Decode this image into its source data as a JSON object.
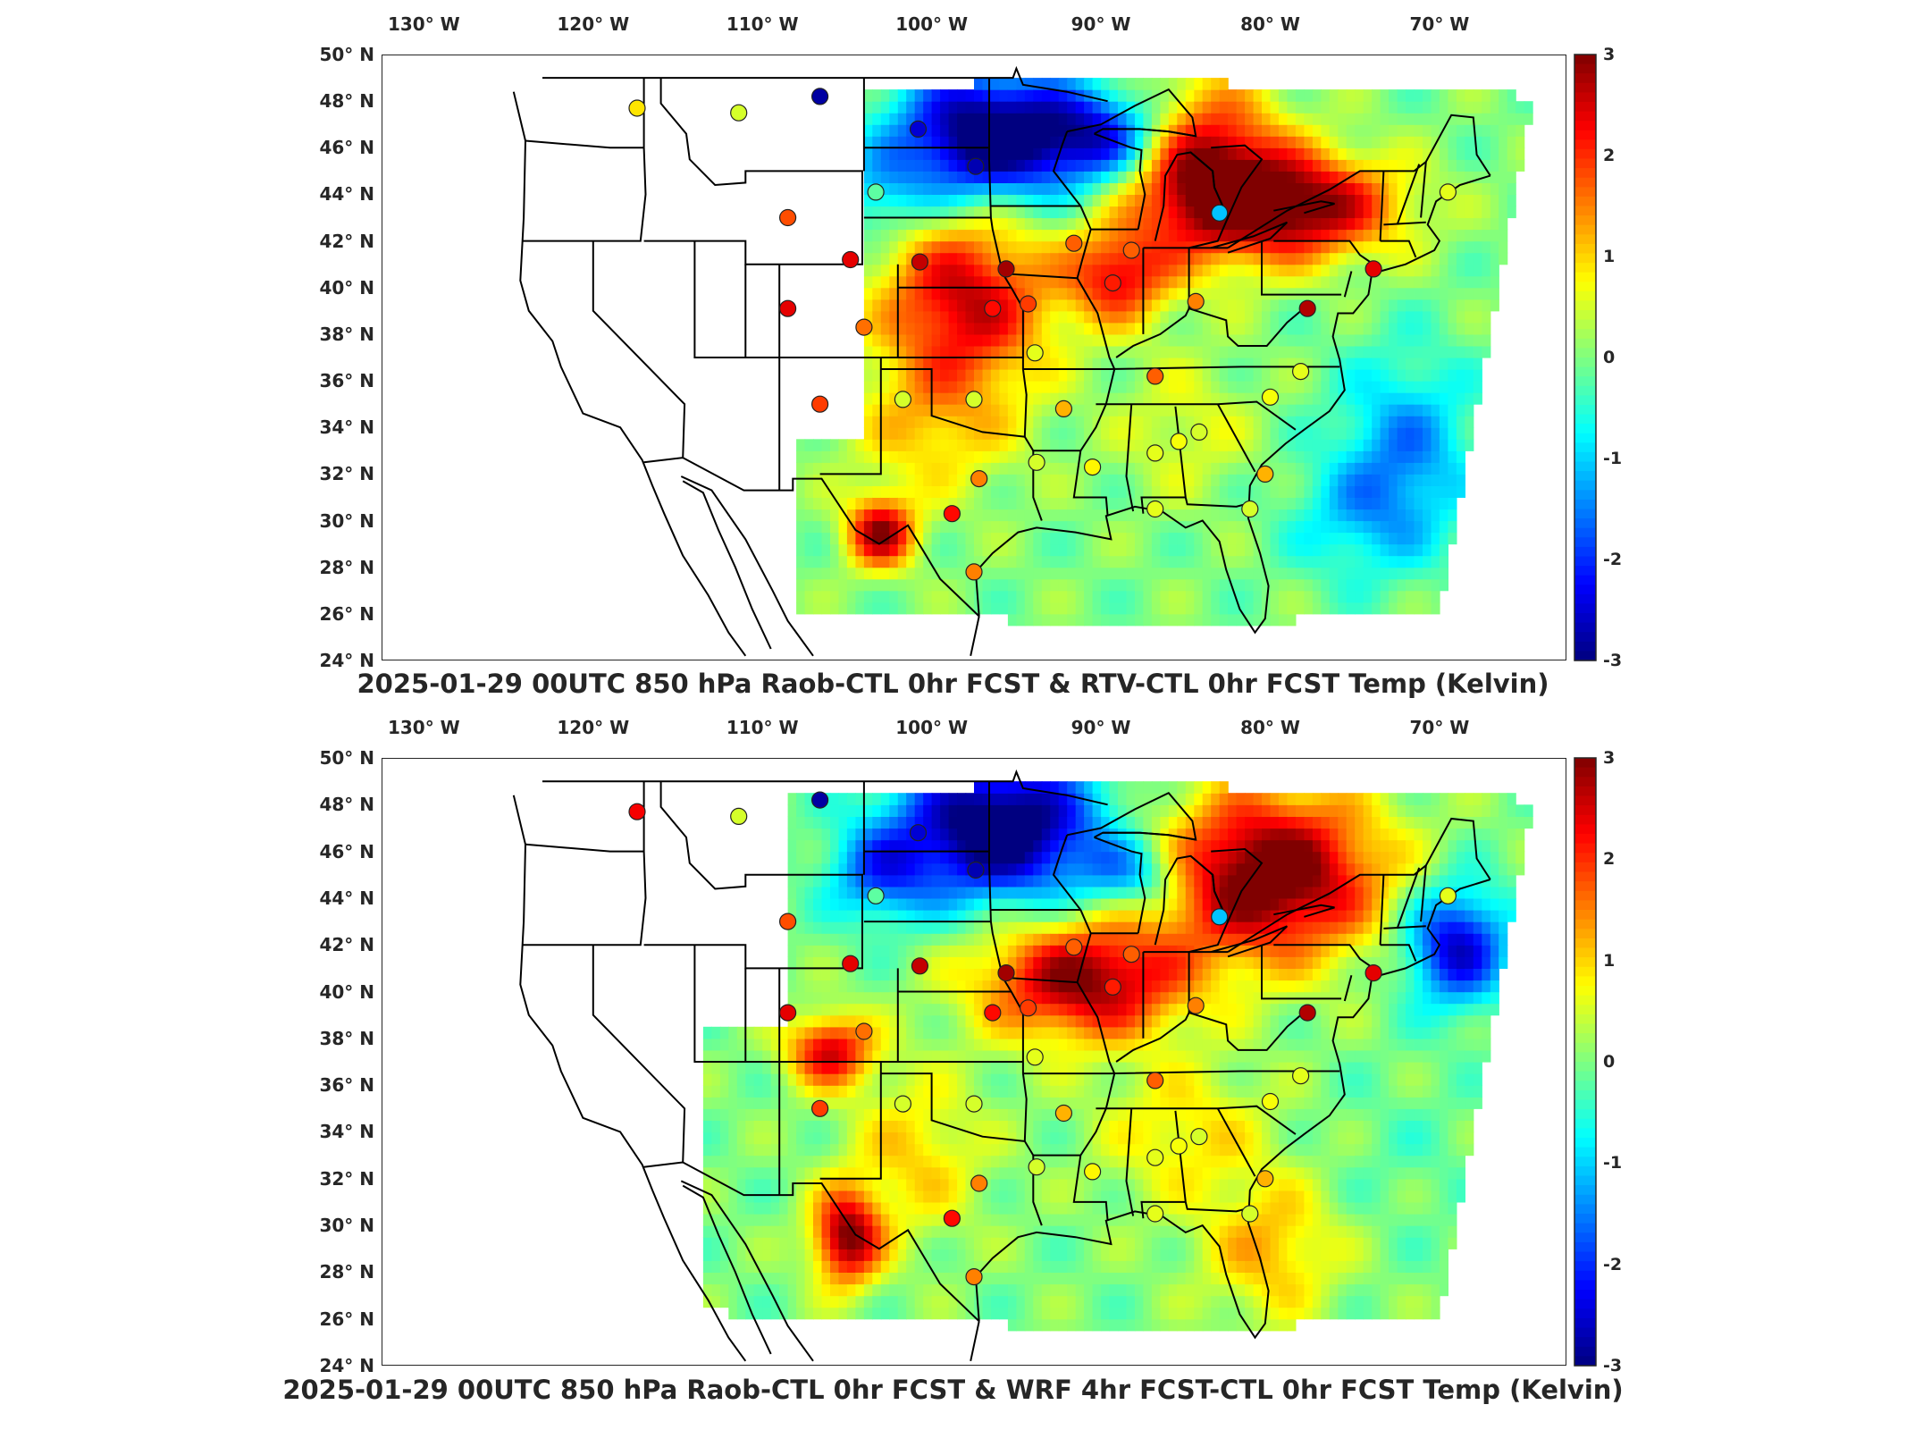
{
  "panels": [
    {
      "title": "2025-01-29 00UTC 850 hPa Raob-CTL 0hr FCST & RTV-CTL 0hr FCST Temp (Kelvin)",
      "field": "rtv",
      "stations": [
        {
          "v": 0.9
        },
        {
          "v": 0.5
        },
        {
          "v": -2.8
        },
        {
          "v": -2.5
        },
        {
          "v": -2.7
        },
        {
          "v": -0.2
        },
        {
          "v": 1.8
        },
        {
          "v": 2.4
        },
        {
          "v": 2.6
        },
        {
          "v": 2.2
        },
        {
          "v": 1.6
        },
        {
          "v": 0.5
        },
        {
          "v": 2.4
        },
        {
          "v": 1.9
        },
        {
          "v": 2.8
        },
        {
          "v": 1.9
        },
        {
          "v": 2.1
        },
        {
          "v": 1.7
        },
        {
          "v": 1.7
        },
        {
          "v": 0.5
        },
        {
          "v": 0.6
        },
        {
          "v": 1.2
        },
        {
          "v": 0.8
        },
        {
          "v": 0.5
        },
        {
          "v": 1.7
        },
        {
          "v": 1.5
        },
        {
          "v": 2.7
        },
        {
          "v": -1.1
        },
        {
          "v": 0.7
        },
        {
          "v": 0.6
        },
        {
          "v": 0.6
        },
        {
          "v": 0.5
        },
        {
          "v": 0.7
        },
        {
          "v": 2.4
        },
        {
          "v": 0.6
        },
        {
          "v": 1.5
        },
        {
          "v": 1.5
        },
        {
          "v": 2.2
        },
        {
          "v": 0.5
        },
        {
          "v": 1.2
        },
        {
          "v": 0.6
        }
      ]
    },
    {
      "title": "2025-01-29 00UTC 850 hPa Raob-CTL 0hr FCST & WRF 4hr FCST-CTL 0hr FCST Temp (Kelvin)",
      "field": "wrf",
      "stations": [
        {
          "v": 2.3
        },
        {
          "v": 0.5
        },
        {
          "v": -2.8
        },
        {
          "v": -2.5
        },
        {
          "v": -2.7
        },
        {
          "v": -0.2
        },
        {
          "v": 1.8
        },
        {
          "v": 2.4
        },
        {
          "v": 2.6
        },
        {
          "v": 2.2
        },
        {
          "v": 1.6
        },
        {
          "v": 0.5
        },
        {
          "v": 2.4
        },
        {
          "v": 1.9
        },
        {
          "v": 2.8
        },
        {
          "v": 1.9
        },
        {
          "v": 2.1
        },
        {
          "v": 1.7
        },
        {
          "v": 1.7
        },
        {
          "v": 0.5
        },
        {
          "v": 0.6
        },
        {
          "v": 1.2
        },
        {
          "v": 0.8
        },
        {
          "v": 0.5
        },
        {
          "v": 1.7
        },
        {
          "v": 1.5
        },
        {
          "v": 2.7
        },
        {
          "v": -1.1
        },
        {
          "v": 0.7
        },
        {
          "v": 0.6
        },
        {
          "v": 0.6
        },
        {
          "v": 0.5
        },
        {
          "v": 0.7
        },
        {
          "v": 2.4
        },
        {
          "v": 0.6
        },
        {
          "v": 1.5
        },
        {
          "v": 1.5
        },
        {
          "v": 2.2
        },
        {
          "v": 0.5
        },
        {
          "v": 1.2
        },
        {
          "v": 0.6
        }
      ]
    }
  ],
  "lon_ticks": [
    "130° W",
    "120° W",
    "110° W",
    "100° W",
    "90° W",
    "80° W",
    "70° W"
  ],
  "lat_ticks": [
    "50° N",
    "48° N",
    "46° N",
    "44° N",
    "42° N",
    "40° N",
    "38° N",
    "36° N",
    "34° N",
    "32° N",
    "30° N",
    "28° N",
    "26° N",
    "24° N"
  ],
  "colorbar": {
    "range": [
      -3,
      3
    ],
    "ticks": [
      "3",
      "2",
      "1",
      "0",
      "-1",
      "-2",
      "-3"
    ],
    "colormap": "jet",
    "colors": [
      "#00007f",
      "#0000ff",
      "#007fff",
      "#00ffff",
      "#7fff7f",
      "#ffff00",
      "#ff7f00",
      "#ff0000",
      "#7f0000"
    ]
  },
  "colors": {
    "frame": "#262626",
    "coastline": "#000000"
  }
}
